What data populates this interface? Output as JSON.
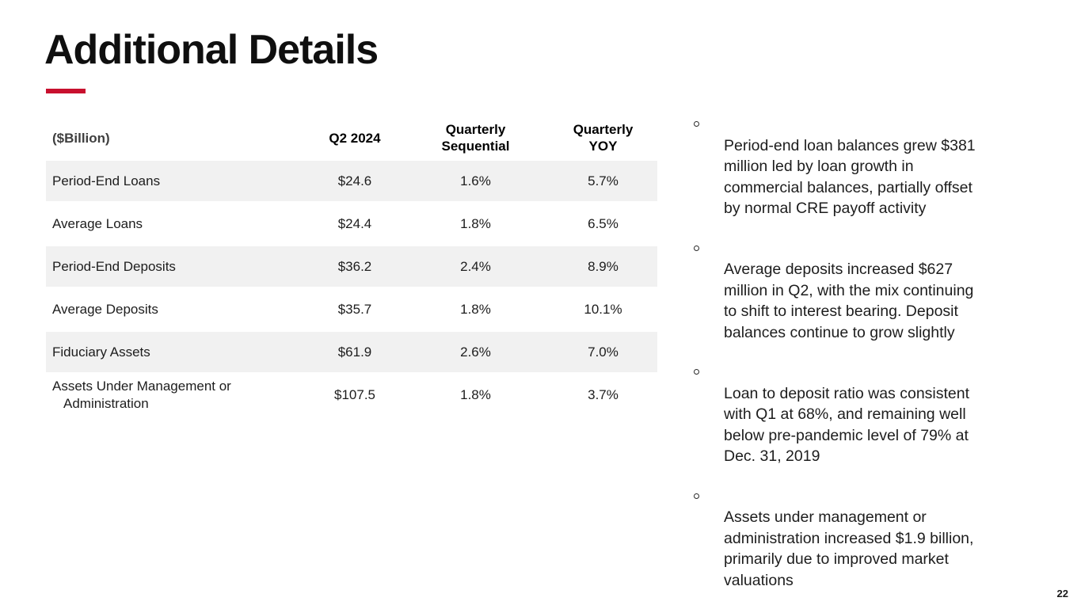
{
  "title": "Additional Details",
  "accent_color": "#c8102e",
  "table": {
    "headers": [
      "($Billion)",
      "Q2 2024",
      "Quarterly\nSequential",
      "Quarterly\nYOY"
    ],
    "rows": [
      {
        "label": "Period-End Loans",
        "q2_2024": "$24.6",
        "quarterly_sequential": "1.6%",
        "quarterly_yoy": "5.7%"
      },
      {
        "label": "Average Loans",
        "q2_2024": "$24.4",
        "quarterly_sequential": "1.8%",
        "quarterly_yoy": "6.5%"
      },
      {
        "label": "Period-End Deposits",
        "q2_2024": "$36.2",
        "quarterly_sequential": "2.4%",
        "quarterly_yoy": "8.9%"
      },
      {
        "label": "Average Deposits",
        "q2_2024": "$35.7",
        "quarterly_sequential": "1.8%",
        "quarterly_yoy": "10.1%"
      },
      {
        "label": "Fiduciary Assets",
        "q2_2024": "$61.9",
        "quarterly_sequential": "2.6%",
        "quarterly_yoy": "7.0%"
      },
      {
        "label": "Assets Under Management or\nAdministration",
        "q2_2024": "$107.5",
        "quarterly_sequential": "1.8%",
        "quarterly_yoy": "3.7%"
      }
    ]
  },
  "bullets": [
    "Period-end loan balances grew $381\nmillion led by loan growth in\ncommercial balances, partially offset\nby normal CRE payoff activity",
    "Average deposits increased $627\nmillion in Q2, with the mix continuing\nto shift to interest bearing. Deposit\nbalances continue to grow slightly",
    "Loan to deposit ratio was consistent\nwith Q1 at 68%, and remaining well\nbelow pre-pandemic level of 79% at\nDec. 31, 2019",
    "Assets under management or\nadministration increased $1.9 billion,\nprimarily due to improved market\nvaluations"
  ],
  "page_number": "22"
}
